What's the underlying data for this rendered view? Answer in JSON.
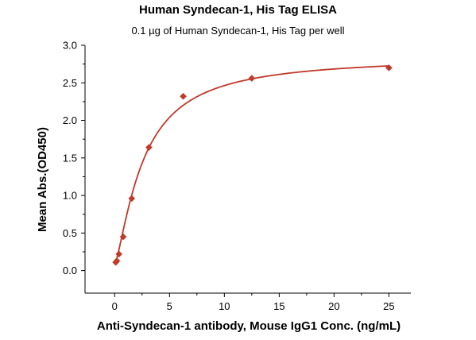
{
  "chart_data": {
    "type": "scatter",
    "title": "Human Syndecan-1, His Tag ELISA",
    "subtitle": "0.1 µg of Human Syndecan-1, His Tag per well",
    "xlabel": "Anti-Syndecan-1 antibody, Mouse IgG1 Conc. (ng/mL)",
    "ylabel": "Mean Abs.(OD450)",
    "xlim": [
      -2.7,
      27
    ],
    "ylim": [
      -0.3,
      3.0
    ],
    "xticks": [
      "0",
      "5",
      "10",
      "15",
      "20",
      "25"
    ],
    "yticks": [
      "0.0",
      "0.5",
      "1.0",
      "1.5",
      "2.0",
      "2.5",
      "3.0"
    ],
    "grid": false,
    "colors": {
      "series": "#c0392b"
    },
    "series": [
      {
        "x": [
          0.1,
          0.2,
          0.39,
          0.78,
          1.56,
          3.125,
          6.25,
          12.5,
          25
        ],
        "y": [
          0.11,
          0.13,
          0.22,
          0.45,
          0.96,
          1.64,
          2.32,
          2.56,
          2.7
        ],
        "marker": "diamond",
        "fit": "4-parameter logistic curve"
      }
    ]
  }
}
